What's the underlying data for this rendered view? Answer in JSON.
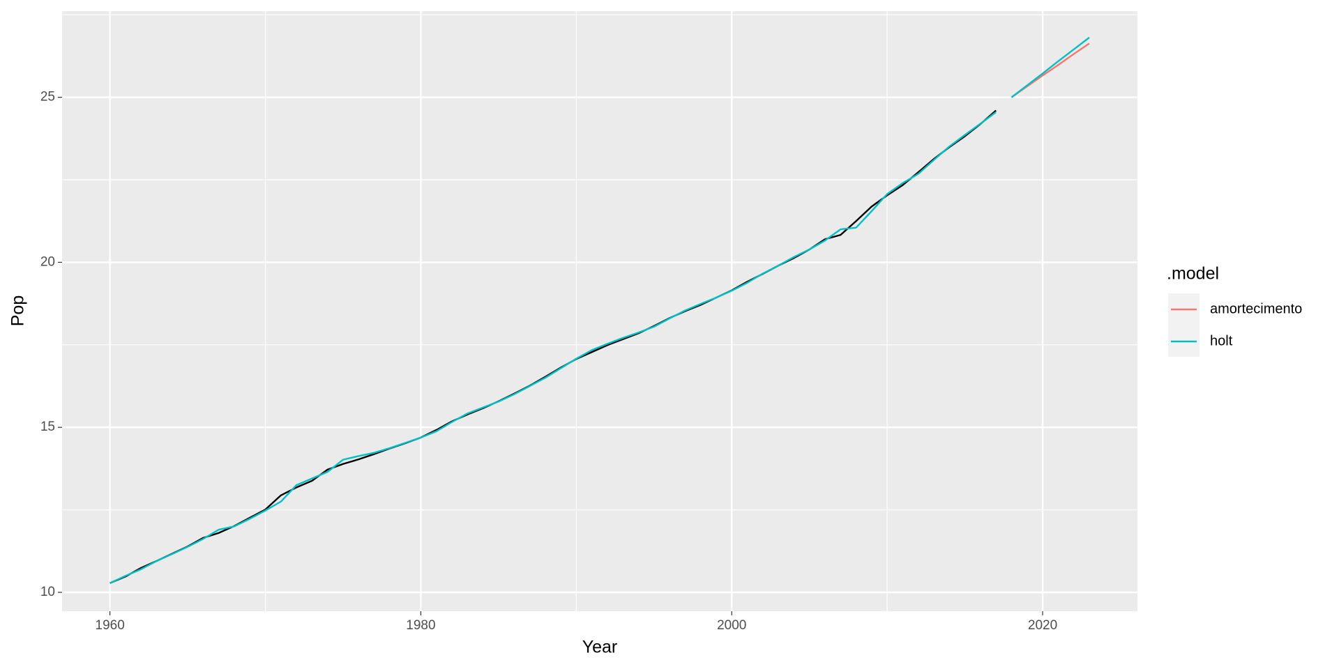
{
  "chart_data": {
    "type": "line",
    "x_label": "Year",
    "y_label": "Pop",
    "legend_title": ".model",
    "x": [
      1960,
      1961,
      1962,
      1963,
      1964,
      1965,
      1966,
      1967,
      1968,
      1969,
      1970,
      1971,
      1972,
      1973,
      1974,
      1975,
      1976,
      1977,
      1978,
      1979,
      1980,
      1981,
      1982,
      1983,
      1984,
      1985,
      1986,
      1987,
      1988,
      1989,
      1990,
      1991,
      1992,
      1993,
      1994,
      1995,
      1996,
      1997,
      1998,
      1999,
      2000,
      2001,
      2002,
      2003,
      2004,
      2005,
      2006,
      2007,
      2008,
      2009,
      2010,
      2011,
      2012,
      2013,
      2014,
      2015,
      2016,
      2017,
      2018,
      2019,
      2020,
      2021,
      2022,
      2023
    ],
    "observed": {
      "color": "#000000",
      "values": [
        10.28,
        10.48,
        10.74,
        10.95,
        11.17,
        11.39,
        11.65,
        11.8,
        12.01,
        12.26,
        12.51,
        12.94,
        13.18,
        13.38,
        13.72,
        13.89,
        14.03,
        14.19,
        14.36,
        14.52,
        14.69,
        14.92,
        15.18,
        15.39,
        15.58,
        15.79,
        16.02,
        16.26,
        16.53,
        16.81,
        17.07,
        17.28,
        17.49,
        17.67,
        17.85,
        18.07,
        18.31,
        18.52,
        18.71,
        18.93,
        19.15,
        19.41,
        19.65,
        19.9,
        20.13,
        20.39,
        20.7,
        20.83,
        21.25,
        21.69,
        22.03,
        22.34,
        22.73,
        23.13,
        23.49,
        23.82,
        24.19,
        24.6,
        null,
        null,
        null,
        null,
        null,
        null
      ]
    },
    "fitted": {
      "color": "#00BFC4",
      "values": [
        10.28,
        10.5,
        10.7,
        10.95,
        11.16,
        11.38,
        11.62,
        11.9,
        12.0,
        12.23,
        12.48,
        12.75,
        13.25,
        13.45,
        13.65,
        14.02,
        14.13,
        14.23,
        14.37,
        14.53,
        14.69,
        14.88,
        15.16,
        15.42,
        15.6,
        15.78,
        16.0,
        16.25,
        16.5,
        16.79,
        17.08,
        17.34,
        17.53,
        17.71,
        17.87,
        18.05,
        18.3,
        18.54,
        18.74,
        18.93,
        19.14,
        19.38,
        19.66,
        19.9,
        20.16,
        20.39,
        20.66,
        21.0,
        21.05,
        21.55,
        22.07,
        22.4,
        22.68,
        23.1,
        23.51,
        23.86,
        24.2,
        24.55,
        null,
        null,
        null,
        null,
        null,
        null
      ]
    },
    "series": [
      {
        "name": "amortecimento",
        "color": "#F8766D",
        "values": [
          null,
          null,
          null,
          null,
          null,
          null,
          null,
          null,
          null,
          null,
          null,
          null,
          null,
          null,
          null,
          null,
          null,
          null,
          null,
          null,
          null,
          null,
          null,
          null,
          null,
          null,
          null,
          null,
          null,
          null,
          null,
          null,
          null,
          null,
          null,
          null,
          null,
          null,
          null,
          null,
          null,
          null,
          null,
          null,
          null,
          null,
          null,
          null,
          null,
          null,
          null,
          null,
          null,
          null,
          null,
          null,
          null,
          null,
          25.0,
          25.33,
          25.66,
          25.98,
          26.31,
          26.63
        ]
      },
      {
        "name": "holt",
        "color": "#00BFC4",
        "values": [
          null,
          null,
          null,
          null,
          null,
          null,
          null,
          null,
          null,
          null,
          null,
          null,
          null,
          null,
          null,
          null,
          null,
          null,
          null,
          null,
          null,
          null,
          null,
          null,
          null,
          null,
          null,
          null,
          null,
          null,
          null,
          null,
          null,
          null,
          null,
          null,
          null,
          null,
          null,
          null,
          null,
          null,
          null,
          null,
          null,
          null,
          null,
          null,
          null,
          null,
          null,
          null,
          null,
          null,
          null,
          null,
          null,
          null,
          25.0,
          25.36,
          25.72,
          26.09,
          26.45,
          26.81
        ]
      }
    ],
    "xlim": [
      1956.92,
      2026.1
    ],
    "ylim": [
      9.43,
      27.61
    ],
    "xticks": [
      1960,
      1980,
      2000,
      2020
    ],
    "yticks": [
      10,
      15,
      20,
      25
    ],
    "x_minor_ticks": [
      1970,
      1990,
      2010
    ],
    "y_minor_ticks": [
      12.5,
      17.5,
      22.5,
      27.5
    ],
    "grid": true
  }
}
